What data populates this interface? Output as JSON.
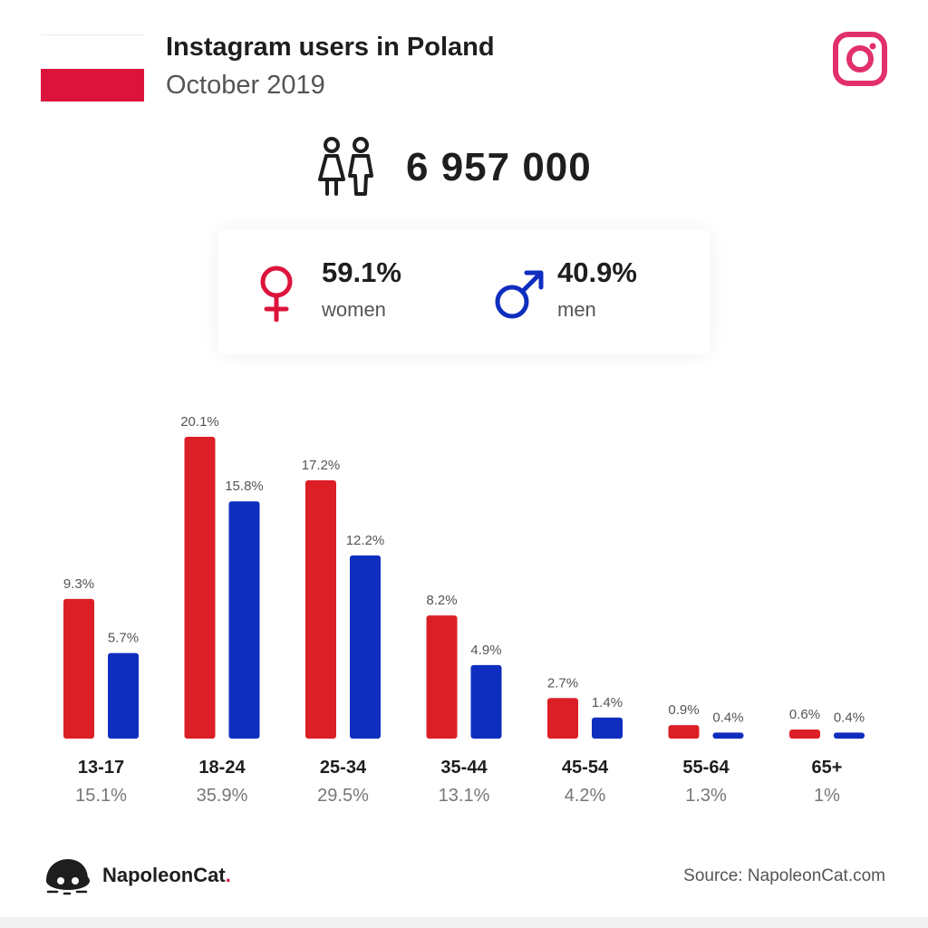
{
  "header": {
    "title": "Instagram users in Poland",
    "subtitle": "October 2019",
    "flag_colors": [
      "#ffffff",
      "#dc143c"
    ],
    "logo_icon": "instagram-icon"
  },
  "total": {
    "value": "6 957 000",
    "icon": "people-icon"
  },
  "gender": {
    "women": {
      "pct": "59.1%",
      "label": "women",
      "icon": "female-symbol-icon",
      "color": "#dc143c"
    },
    "men": {
      "pct": "40.9%",
      "label": "men",
      "icon": "male-symbol-icon",
      "color": "#0f2ebf"
    }
  },
  "chart_data": {
    "type": "bar",
    "categories": [
      "13-17",
      "18-24",
      "25-34",
      "35-44",
      "45-54",
      "55-64",
      "65+"
    ],
    "category_totals": [
      "15.1%",
      "35.9%",
      "29.5%",
      "13.1%",
      "4.2%",
      "1.3%",
      "1%"
    ],
    "series": [
      {
        "values": [
          9.3,
          20.1,
          17.2,
          8.2,
          2.7,
          0.9,
          0.6
        ],
        "labels": [
          "9.3%",
          "20.1%",
          "17.2%",
          "8.2%",
          "2.7%",
          "0.9%",
          "0.6%"
        ],
        "color": "#dc1f26"
      },
      {
        "values": [
          5.7,
          15.8,
          12.2,
          4.9,
          1.4,
          0.4,
          0.4
        ],
        "labels": [
          "5.7%",
          "15.8%",
          "12.2%",
          "4.9%",
          "1.4%",
          "0.4%",
          "0.4%"
        ],
        "color": "#0f2ebf"
      }
    ],
    "ylim": [
      0,
      20.1
    ],
    "grid": false,
    "legend": "none"
  },
  "footer": {
    "brand": "NapoleonCat",
    "brand_dot": ".",
    "brand_icon": "napoleoncat-logo-icon",
    "source": "Source: NapoleonCat.com"
  }
}
